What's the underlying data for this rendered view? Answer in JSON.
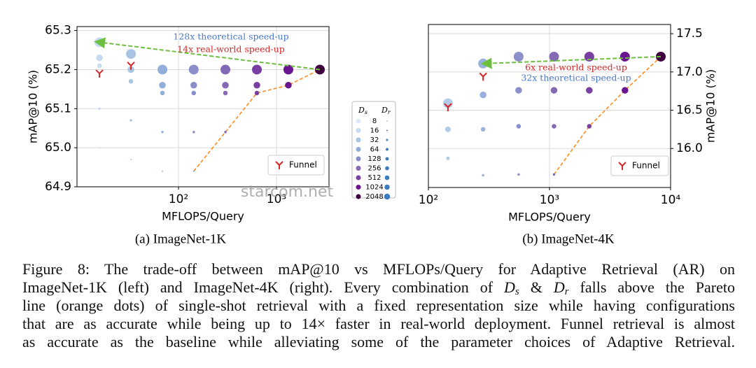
{
  "chart_data": [
    {
      "type": "scatter",
      "xlabel": "MFLOPS/Query",
      "ylabel": "mAP@10 (%)",
      "log_x": true,
      "grid": true,
      "xlim": [
        9.2,
        3435
      ],
      "xticks": [
        {
          "value": 100,
          "label": "10²"
        },
        {
          "value": 1000,
          "label": "10³"
        }
      ],
      "ylim": [
        64.9,
        65.31
      ],
      "yticks": [
        {
          "value": 64.9,
          "label": "64.9"
        },
        {
          "value": 65.0,
          "label": "65.0"
        },
        {
          "value": 65.1,
          "label": "65.1"
        },
        {
          "value": 65.2,
          "label": "65.2"
        },
        {
          "value": 65.3,
          "label": "65.3"
        }
      ],
      "series": [
        {
          "color": "#c6dbef",
          "x": [
            15.6,
            15.6,
            15.6,
            15.6,
            15.6
          ],
          "values": [
            65.27,
            65.23,
            65.21,
            65.1,
            65.0
          ],
          "sizes": [
            2048,
            256,
            64,
            16,
            8
          ]
        },
        {
          "color": "#a9c3e3",
          "x": [
            32.7,
            32.7,
            32.7,
            32.7,
            32.7
          ],
          "values": [
            65.24,
            65.2,
            65.17,
            65.07,
            64.97
          ],
          "sizes": [
            2048,
            256,
            64,
            16,
            8
          ]
        },
        {
          "color": "#93aedb",
          "x": [
            68.5,
            68.5,
            68.5,
            68.5,
            68.5
          ],
          "values": [
            65.2,
            65.16,
            65.14,
            65.04,
            64.94
          ],
          "sizes": [
            2048,
            256,
            64,
            16,
            8
          ]
        },
        {
          "color": "#8a8fca",
          "x": [
            143,
            143,
            143,
            143,
            143
          ],
          "values": [
            65.2,
            65.16,
            65.14,
            65.04,
            64.94
          ],
          "sizes": [
            2048,
            256,
            64,
            16,
            8
          ]
        },
        {
          "color": "#8469b5",
          "x": [
            301,
            301,
            301,
            301
          ],
          "values": [
            65.2,
            65.16,
            65.14,
            65.04
          ],
          "sizes": [
            2048,
            256,
            64,
            16
          ]
        },
        {
          "color": "#7a3fa3",
          "x": [
            631,
            631,
            631
          ],
          "values": [
            65.2,
            65.16,
            65.14
          ],
          "sizes": [
            2048,
            256,
            64
          ]
        },
        {
          "color": "#68158f",
          "x": [
            1322,
            1322
          ],
          "values": [
            65.2,
            65.16
          ],
          "sizes": [
            2048,
            256
          ]
        },
        {
          "color": "#3f0040",
          "x": [
            2773
          ],
          "values": [
            65.2
          ],
          "sizes": [
            2048
          ]
        }
      ],
      "funnel": {
        "name": "Funnel",
        "color": "#d62728",
        "x": [
          15.6,
          32.7
        ],
        "values": [
          65.19,
          65.21
        ]
      },
      "pareto": {
        "color": "#ff8c1a",
        "x": [
          143,
          301,
          631,
          1322,
          2773
        ],
        "values": [
          64.94,
          65.04,
          65.14,
          65.16,
          65.2
        ]
      },
      "arrow": {
        "color": "#6cbf3f",
        "x": [
          2773,
          15.6
        ],
        "values": [
          65.2,
          65.27
        ]
      },
      "annotations": [
        {
          "text": "128x theoretical speed-up",
          "color": "#4a78c8"
        },
        {
          "text": "14x real-world speed-up",
          "color": "#d62728"
        }
      ],
      "subtitle": "(a) ImageNet-1K"
    },
    {
      "type": "scatter",
      "xlabel": "MFLOPS/Query",
      "ylabel": "mAP@10 (%)",
      "log_x": true,
      "grid": true,
      "y_side": "right",
      "xlim": [
        100,
        10000
      ],
      "xticks": [
        {
          "value": 100,
          "label": "10²"
        },
        {
          "value": 1000,
          "label": "10³"
        },
        {
          "value": 10000,
          "label": "10⁴"
        }
      ],
      "ylim": [
        15.49,
        17.62
      ],
      "yticks": [
        {
          "value": 16.0,
          "label": "16.0"
        },
        {
          "value": 16.5,
          "label": "16.5"
        },
        {
          "value": 17.0,
          "label": "17.0"
        },
        {
          "value": 17.5,
          "label": "17.5"
        }
      ],
      "series": [
        {
          "color": "#b3cbe6",
          "x": [
            145,
            145,
            145
          ],
          "values": [
            16.59,
            16.25,
            15.87
          ],
          "sizes": [
            2048,
            128,
            32
          ]
        },
        {
          "color": "#98b1dc",
          "x": [
            283,
            283,
            283,
            283
          ],
          "values": [
            17.11,
            16.7,
            16.25,
            15.65
          ],
          "sizes": [
            2048,
            256,
            64,
            16
          ]
        },
        {
          "color": "#8b90ca",
          "x": [
            556,
            556,
            556,
            556
          ],
          "values": [
            17.2,
            16.76,
            16.29,
            15.66
          ],
          "sizes": [
            2048,
            256,
            64,
            16
          ]
        },
        {
          "color": "#8469b5",
          "x": [
            1090,
            1090,
            1090,
            1090
          ],
          "values": [
            17.2,
            16.76,
            16.29,
            15.66
          ],
          "sizes": [
            2048,
            256,
            64,
            16
          ]
        },
        {
          "color": "#7a3fa3",
          "x": [
            2130,
            2130,
            2130
          ],
          "values": [
            17.2,
            16.76,
            16.29
          ],
          "sizes": [
            2048,
            256,
            64
          ]
        },
        {
          "color": "#68158f",
          "x": [
            4200,
            4200
          ],
          "values": [
            17.2,
            16.76
          ],
          "sizes": [
            2048,
            256
          ]
        },
        {
          "color": "#3f0040",
          "x": [
            8300
          ],
          "values": [
            17.2
          ],
          "sizes": [
            2048
          ]
        }
      ],
      "funnel": {
        "name": "Funnel",
        "color": "#d62728",
        "x": [
          145,
          283
        ],
        "values": [
          16.54,
          16.94
        ]
      },
      "pareto": {
        "color": "#ff8c1a",
        "x": [
          1090,
          2130,
          4200,
          8300
        ],
        "values": [
          15.66,
          16.29,
          16.76,
          17.2
        ]
      },
      "arrow": {
        "color": "#6cbf3f",
        "x": [
          8300,
          300
        ],
        "values": [
          17.2,
          17.11
        ]
      },
      "annotations": [
        {
          "text": "6x real-world speed-up",
          "color": "#d62728"
        },
        {
          "text": "32x theoretical speed-up",
          "color": "#4a78c8"
        }
      ],
      "subtitle": "(b) ImageNet-4K"
    }
  ],
  "legend": {
    "headers": [
      [
        "D",
        "s"
      ],
      [
        "D",
        "r"
      ]
    ],
    "labels": [
      "8",
      "16",
      "32",
      "64",
      "128",
      "256",
      "512",
      "1024",
      "2048"
    ],
    "colors": [
      "#dbe8f5",
      "#c6dbef",
      "#a9c3e3",
      "#93aedb",
      "#8a8fca",
      "#8469b5",
      "#7a3fa3",
      "#68158f",
      "#3f0040"
    ],
    "size_color": "#3b7bbf"
  },
  "watermark": "starcom.net",
  "caption": [
    [
      {
        "t": "Figure 8: The trade-off between mAP@10 vs MFLOPs/Query for Adaptive Retrieval (AR) on"
      }
    ],
    [
      {
        "t": "ImageNet-1K (left) and ImageNet-4K (right). Every combination of "
      },
      {
        "i": "D"
      },
      {
        "sub": "s"
      },
      {
        "t": " & "
      },
      {
        "i": "D"
      },
      {
        "sub": "r"
      },
      {
        "t": " falls above the Pareto"
      }
    ],
    [
      {
        "t": "line (orange dots) of single-shot retrieval with a fixed representation size while having configurations"
      }
    ],
    [
      {
        "t": "that are as accurate while being up to 14× faster in real-world deployment. Funnel retrieval is almost"
      }
    ],
    [
      {
        "t": "as accurate as the baseline while alleviating some of the parameter choices of Adaptive Retrieval."
      }
    ]
  ]
}
